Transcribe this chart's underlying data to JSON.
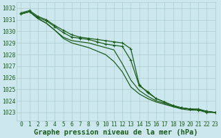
{
  "title": "Graphe pression niveau de la mer (hPa)",
  "bg_color": "#cce8ee",
  "grid_color": "#aacccc",
  "line_color": "#1a5c1a",
  "xlim": [
    -0.5,
    23
  ],
  "ylim": [
    1022.3,
    1032.5
  ],
  "yticks": [
    1023,
    1024,
    1025,
    1026,
    1027,
    1028,
    1029,
    1030,
    1031,
    1032
  ],
  "xticks": [
    0,
    1,
    2,
    3,
    4,
    5,
    6,
    7,
    8,
    9,
    10,
    11,
    12,
    13,
    14,
    15,
    16,
    17,
    18,
    19,
    20,
    21,
    22,
    23
  ],
  "series": [
    {
      "y": [
        1031.5,
        1031.7,
        1031.2,
        1030.9,
        1030.4,
        1029.9,
        1029.5,
        1029.4,
        1029.3,
        1029.1,
        1028.9,
        1028.8,
        1028.7,
        1027.5,
        1025.3,
        1024.8,
        1024.2,
        1023.9,
        1023.6,
        1023.4,
        1023.3,
        1023.3,
        1023.1,
        1023.0
      ],
      "marker": true,
      "lw": 0.9
    },
    {
      "y": [
        1031.5,
        1031.7,
        1031.1,
        1030.7,
        1030.1,
        1029.5,
        1029.2,
        1029.1,
        1029.0,
        1028.8,
        1028.6,
        1028.4,
        1027.2,
        1025.8,
        1024.9,
        1024.4,
        1024.0,
        1023.8,
        1023.5,
        1023.4,
        1023.3,
        1023.2,
        1023.1,
        1023.0
      ],
      "marker": false,
      "lw": 0.9
    },
    {
      "y": [
        1031.5,
        1031.7,
        1031.1,
        1030.7,
        1030.1,
        1029.4,
        1029.0,
        1028.8,
        1028.6,
        1028.3,
        1028.0,
        1027.4,
        1026.5,
        1025.2,
        1024.6,
        1024.2,
        1023.9,
        1023.7,
        1023.5,
        1023.3,
        1023.2,
        1023.2,
        1023.1,
        1023.0
      ],
      "marker": false,
      "lw": 0.9
    },
    {
      "y": [
        1031.6,
        1031.8,
        1031.3,
        1031.0,
        1030.5,
        1030.1,
        1029.7,
        1029.5,
        1029.4,
        1029.3,
        1029.2,
        1029.1,
        1029.0,
        1028.5,
        1025.4,
        1024.7,
        1024.2,
        1023.9,
        1023.6,
        1023.4,
        1023.3,
        1023.2,
        1023.0,
        1023.0
      ],
      "marker": true,
      "lw": 0.9
    }
  ],
  "title_fontsize": 7.5,
  "tick_fontsize": 5.8,
  "fig_width": 3.2,
  "fig_height": 2.0,
  "dpi": 100
}
